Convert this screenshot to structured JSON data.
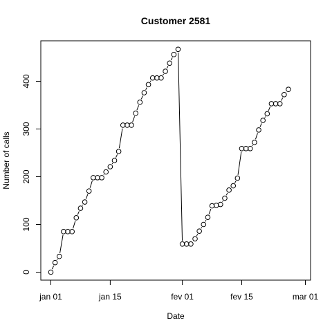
{
  "chart_data": {
    "type": "line",
    "title": "Customer 2581",
    "xlabel": "Date",
    "ylabel": "Number of calls",
    "x_ticks": [
      {
        "date": "2000-01-01",
        "label": "jan 01"
      },
      {
        "date": "2000-01-15",
        "label": "jan 15"
      },
      {
        "date": "2000-02-01",
        "label": "fev 01"
      },
      {
        "date": "2000-02-15",
        "label": "fev 15"
      },
      {
        "date": "2000-03-01",
        "label": "mar 01"
      }
    ],
    "y_ticks": [
      0,
      100,
      200,
      300,
      400
    ],
    "xlim": [
      "2000-01-01",
      "2000-03-01"
    ],
    "ylim": [
      0,
      470
    ],
    "grid": false,
    "x": [
      "2000-01-01",
      "2000-01-02",
      "2000-01-03",
      "2000-01-04",
      "2000-01-05",
      "2000-01-06",
      "2000-01-07",
      "2000-01-08",
      "2000-01-09",
      "2000-01-10",
      "2000-01-11",
      "2000-01-12",
      "2000-01-13",
      "2000-01-14",
      "2000-01-15",
      "2000-01-16",
      "2000-01-17",
      "2000-01-18",
      "2000-01-19",
      "2000-01-20",
      "2000-01-21",
      "2000-01-22",
      "2000-01-23",
      "2000-01-24",
      "2000-01-25",
      "2000-01-26",
      "2000-01-27",
      "2000-01-28",
      "2000-01-29",
      "2000-01-30",
      "2000-01-31",
      "2000-02-01",
      "2000-02-02",
      "2000-02-03",
      "2000-02-04",
      "2000-02-05",
      "2000-02-06",
      "2000-02-07",
      "2000-02-08",
      "2000-02-09",
      "2000-02-10",
      "2000-02-11",
      "2000-02-12",
      "2000-02-13",
      "2000-02-14",
      "2000-02-15",
      "2000-02-16",
      "2000-02-17",
      "2000-02-18",
      "2000-02-19",
      "2000-02-20",
      "2000-02-21",
      "2000-02-22",
      "2000-02-23",
      "2000-02-24",
      "2000-02-25",
      "2000-02-26"
    ],
    "values": [
      0,
      20,
      33,
      85,
      85,
      85,
      114,
      134,
      147,
      170,
      198,
      198,
      198,
      210,
      221,
      234,
      253,
      308,
      308,
      308,
      333,
      356,
      376,
      393,
      407,
      407,
      407,
      421,
      438,
      456,
      467,
      59,
      59,
      59,
      70,
      86,
      100,
      115,
      139,
      140,
      142,
      155,
      172,
      181,
      197,
      259,
      259,
      259,
      272,
      298,
      318,
      332,
      353,
      353,
      353,
      372,
      383
    ]
  }
}
